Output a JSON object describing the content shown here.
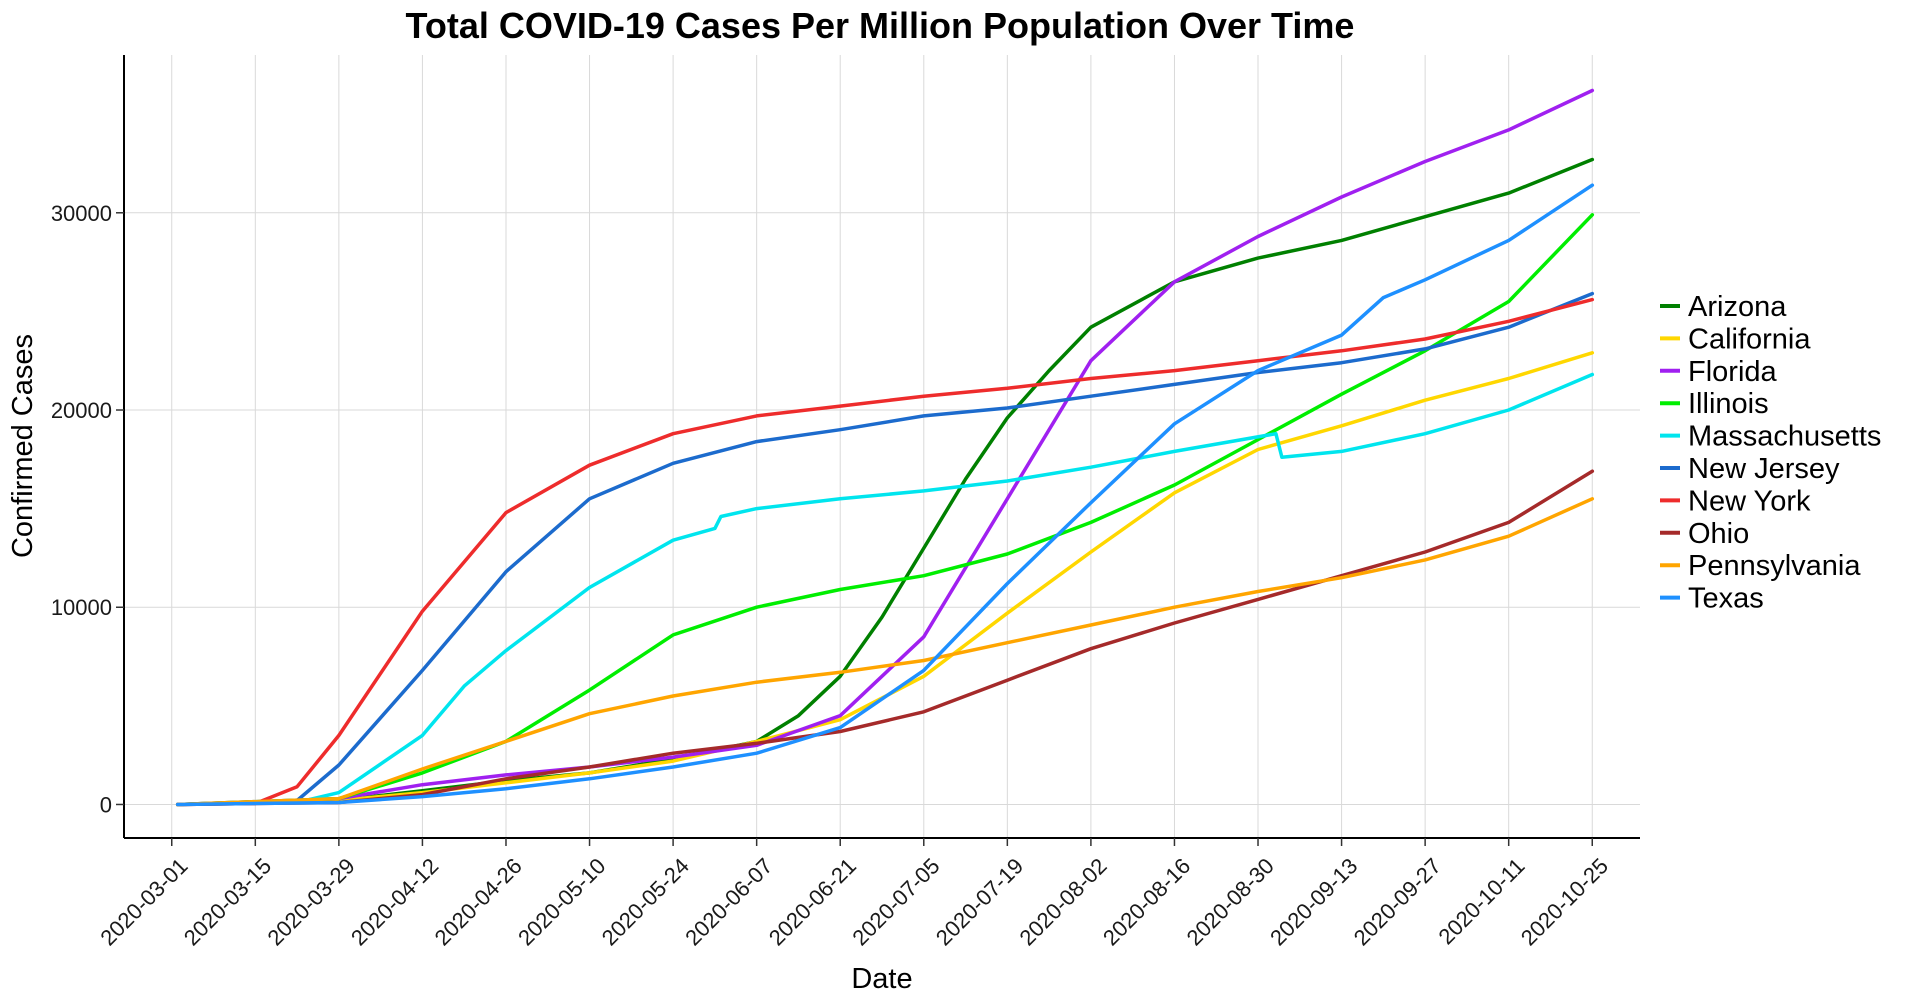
{
  "chart_data": {
    "type": "line",
    "title": "Total COVID-19 Cases Per Million Population Over Time",
    "xlabel": "Date",
    "ylabel": "Confirmed Cases",
    "x_type": "date",
    "xlim": [
      "2020-02-22",
      "2020-11-02"
    ],
    "ylim": [
      -1700,
      38000
    ],
    "x_ticks": [
      "2020-03-01",
      "2020-03-15",
      "2020-03-29",
      "2020-04-12",
      "2020-04-26",
      "2020-05-10",
      "2020-05-24",
      "2020-06-07",
      "2020-06-21",
      "2020-07-05",
      "2020-07-19",
      "2020-08-02",
      "2020-08-16",
      "2020-08-30",
      "2020-09-13",
      "2020-09-27",
      "2020-10-11",
      "2020-10-25"
    ],
    "y_ticks": [
      0,
      10000,
      20000,
      30000
    ],
    "grid": true,
    "legend_position": "right",
    "series": [
      {
        "name": "Arizona",
        "color": "#008000",
        "points": [
          [
            "2020-03-02",
            0
          ],
          [
            "2020-03-29",
            200
          ],
          [
            "2020-04-12",
            700
          ],
          [
            "2020-04-26",
            1200
          ],
          [
            "2020-05-10",
            1600
          ],
          [
            "2020-05-24",
            2300
          ],
          [
            "2020-06-07",
            3200
          ],
          [
            "2020-06-14",
            4500
          ],
          [
            "2020-06-21",
            6500
          ],
          [
            "2020-06-28",
            9500
          ],
          [
            "2020-07-05",
            13000
          ],
          [
            "2020-07-12",
            16500
          ],
          [
            "2020-07-19",
            19600
          ],
          [
            "2020-07-26",
            22000
          ],
          [
            "2020-08-02",
            24200
          ],
          [
            "2020-08-16",
            26500
          ],
          [
            "2020-08-30",
            27700
          ],
          [
            "2020-09-13",
            28600
          ],
          [
            "2020-09-27",
            29800
          ],
          [
            "2020-10-11",
            31000
          ],
          [
            "2020-10-25",
            32700
          ]
        ]
      },
      {
        "name": "California",
        "color": "#FFD700",
        "points": [
          [
            "2020-03-02",
            0
          ],
          [
            "2020-03-29",
            200
          ],
          [
            "2020-04-12",
            600
          ],
          [
            "2020-04-26",
            1100
          ],
          [
            "2020-05-10",
            1600
          ],
          [
            "2020-05-24",
            2200
          ],
          [
            "2020-06-07",
            3200
          ],
          [
            "2020-06-21",
            4300
          ],
          [
            "2020-07-05",
            6500
          ],
          [
            "2020-07-19",
            9700
          ],
          [
            "2020-08-02",
            12800
          ],
          [
            "2020-08-16",
            15800
          ],
          [
            "2020-08-30",
            18000
          ],
          [
            "2020-09-13",
            19200
          ],
          [
            "2020-09-27",
            20500
          ],
          [
            "2020-10-11",
            21600
          ],
          [
            "2020-10-25",
            22900
          ]
        ]
      },
      {
        "name": "Florida",
        "color": "#A020F0",
        "points": [
          [
            "2020-03-02",
            0
          ],
          [
            "2020-03-29",
            300
          ],
          [
            "2020-04-12",
            1000
          ],
          [
            "2020-04-26",
            1500
          ],
          [
            "2020-05-10",
            1900
          ],
          [
            "2020-05-24",
            2400
          ],
          [
            "2020-06-07",
            3000
          ],
          [
            "2020-06-21",
            4500
          ],
          [
            "2020-07-05",
            8500
          ],
          [
            "2020-07-19",
            15500
          ],
          [
            "2020-08-02",
            22500
          ],
          [
            "2020-08-16",
            26500
          ],
          [
            "2020-08-30",
            28800
          ],
          [
            "2020-09-13",
            30800
          ],
          [
            "2020-09-27",
            32600
          ],
          [
            "2020-10-11",
            34200
          ],
          [
            "2020-10-25",
            36200
          ]
        ]
      },
      {
        "name": "Illinois",
        "color": "#00EE00",
        "points": [
          [
            "2020-03-02",
            0
          ],
          [
            "2020-03-29",
            300
          ],
          [
            "2020-04-12",
            1600
          ],
          [
            "2020-04-26",
            3200
          ],
          [
            "2020-05-10",
            5800
          ],
          [
            "2020-05-24",
            8600
          ],
          [
            "2020-06-07",
            10000
          ],
          [
            "2020-06-21",
            10900
          ],
          [
            "2020-07-05",
            11600
          ],
          [
            "2020-07-19",
            12700
          ],
          [
            "2020-08-02",
            14300
          ],
          [
            "2020-08-16",
            16200
          ],
          [
            "2020-08-30",
            18500
          ],
          [
            "2020-09-13",
            20800
          ],
          [
            "2020-09-27",
            23000
          ],
          [
            "2020-10-11",
            25500
          ],
          [
            "2020-10-25",
            29900
          ]
        ]
      },
      {
        "name": "Massachusetts",
        "color": "#00E5EE",
        "points": [
          [
            "2020-03-02",
            0
          ],
          [
            "2020-03-22",
            100
          ],
          [
            "2020-03-29",
            600
          ],
          [
            "2020-04-12",
            3500
          ],
          [
            "2020-04-19",
            6000
          ],
          [
            "2020-04-26",
            7800
          ],
          [
            "2020-05-10",
            11000
          ],
          [
            "2020-05-24",
            13400
          ],
          [
            "2020-05-31",
            14000
          ],
          [
            "2020-06-01",
            14600
          ],
          [
            "2020-06-07",
            15000
          ],
          [
            "2020-06-21",
            15500
          ],
          [
            "2020-07-05",
            15900
          ],
          [
            "2020-07-19",
            16400
          ],
          [
            "2020-08-02",
            17100
          ],
          [
            "2020-08-16",
            17900
          ],
          [
            "2020-09-02",
            18800
          ],
          [
            "2020-09-03",
            17600
          ],
          [
            "2020-09-13",
            17900
          ],
          [
            "2020-09-27",
            18800
          ],
          [
            "2020-10-11",
            20000
          ],
          [
            "2020-10-25",
            21800
          ]
        ]
      },
      {
        "name": "New Jersey",
        "color": "#1C6BCD",
        "points": [
          [
            "2020-03-02",
            0
          ],
          [
            "2020-03-22",
            200
          ],
          [
            "2020-03-29",
            2000
          ],
          [
            "2020-04-12",
            6800
          ],
          [
            "2020-04-26",
            11800
          ],
          [
            "2020-05-10",
            15500
          ],
          [
            "2020-05-24",
            17300
          ],
          [
            "2020-06-07",
            18400
          ],
          [
            "2020-06-21",
            19000
          ],
          [
            "2020-07-05",
            19700
          ],
          [
            "2020-07-19",
            20100
          ],
          [
            "2020-08-02",
            20700
          ],
          [
            "2020-08-16",
            21300
          ],
          [
            "2020-08-30",
            21900
          ],
          [
            "2020-09-13",
            22400
          ],
          [
            "2020-09-27",
            23100
          ],
          [
            "2020-10-11",
            24200
          ],
          [
            "2020-10-25",
            25900
          ]
        ]
      },
      {
        "name": "New York",
        "color": "#EE2C2C",
        "points": [
          [
            "2020-03-02",
            0
          ],
          [
            "2020-03-15",
            50
          ],
          [
            "2020-03-22",
            900
          ],
          [
            "2020-03-29",
            3500
          ],
          [
            "2020-04-12",
            9800
          ],
          [
            "2020-04-26",
            14800
          ],
          [
            "2020-05-10",
            17200
          ],
          [
            "2020-05-24",
            18800
          ],
          [
            "2020-06-07",
            19700
          ],
          [
            "2020-06-21",
            20200
          ],
          [
            "2020-07-05",
            20700
          ],
          [
            "2020-07-19",
            21100
          ],
          [
            "2020-08-02",
            21600
          ],
          [
            "2020-08-16",
            22000
          ],
          [
            "2020-08-30",
            22500
          ],
          [
            "2020-09-13",
            23000
          ],
          [
            "2020-09-27",
            23600
          ],
          [
            "2020-10-11",
            24500
          ],
          [
            "2020-10-25",
            25600
          ]
        ]
      },
      {
        "name": "Ohio",
        "color": "#A52A2A",
        "points": [
          [
            "2020-03-02",
            0
          ],
          [
            "2020-03-29",
            100
          ],
          [
            "2020-04-12",
            500
          ],
          [
            "2020-04-26",
            1300
          ],
          [
            "2020-05-10",
            1900
          ],
          [
            "2020-05-24",
            2600
          ],
          [
            "2020-06-07",
            3100
          ],
          [
            "2020-06-21",
            3700
          ],
          [
            "2020-07-05",
            4700
          ],
          [
            "2020-07-19",
            6300
          ],
          [
            "2020-08-02",
            7900
          ],
          [
            "2020-08-16",
            9200
          ],
          [
            "2020-08-30",
            10400
          ],
          [
            "2020-09-13",
            11600
          ],
          [
            "2020-09-27",
            12800
          ],
          [
            "2020-10-11",
            14300
          ],
          [
            "2020-10-25",
            16900
          ]
        ]
      },
      {
        "name": "Pennsylvania",
        "color": "#FFA500",
        "points": [
          [
            "2020-03-02",
            0
          ],
          [
            "2020-03-29",
            300
          ],
          [
            "2020-04-12",
            1800
          ],
          [
            "2020-04-26",
            3200
          ],
          [
            "2020-05-10",
            4600
          ],
          [
            "2020-05-24",
            5500
          ],
          [
            "2020-06-07",
            6200
          ],
          [
            "2020-06-21",
            6700
          ],
          [
            "2020-07-05",
            7300
          ],
          [
            "2020-07-19",
            8200
          ],
          [
            "2020-08-02",
            9100
          ],
          [
            "2020-08-16",
            10000
          ],
          [
            "2020-08-30",
            10800
          ],
          [
            "2020-09-13",
            11500
          ],
          [
            "2020-09-27",
            12400
          ],
          [
            "2020-10-11",
            13600
          ],
          [
            "2020-10-25",
            15500
          ]
        ]
      },
      {
        "name": "Texas",
        "color": "#1E90FF",
        "points": [
          [
            "2020-03-02",
            0
          ],
          [
            "2020-03-29",
            100
          ],
          [
            "2020-04-12",
            400
          ],
          [
            "2020-04-26",
            800
          ],
          [
            "2020-05-10",
            1300
          ],
          [
            "2020-05-24",
            1900
          ],
          [
            "2020-06-07",
            2600
          ],
          [
            "2020-06-21",
            3900
          ],
          [
            "2020-07-05",
            6800
          ],
          [
            "2020-07-19",
            11200
          ],
          [
            "2020-08-02",
            15300
          ],
          [
            "2020-08-16",
            19300
          ],
          [
            "2020-08-30",
            22000
          ],
          [
            "2020-09-13",
            23800
          ],
          [
            "2020-09-20",
            25700
          ],
          [
            "2020-09-27",
            26600
          ],
          [
            "2020-10-11",
            28600
          ],
          [
            "2020-10-25",
            31400
          ]
        ]
      }
    ]
  }
}
